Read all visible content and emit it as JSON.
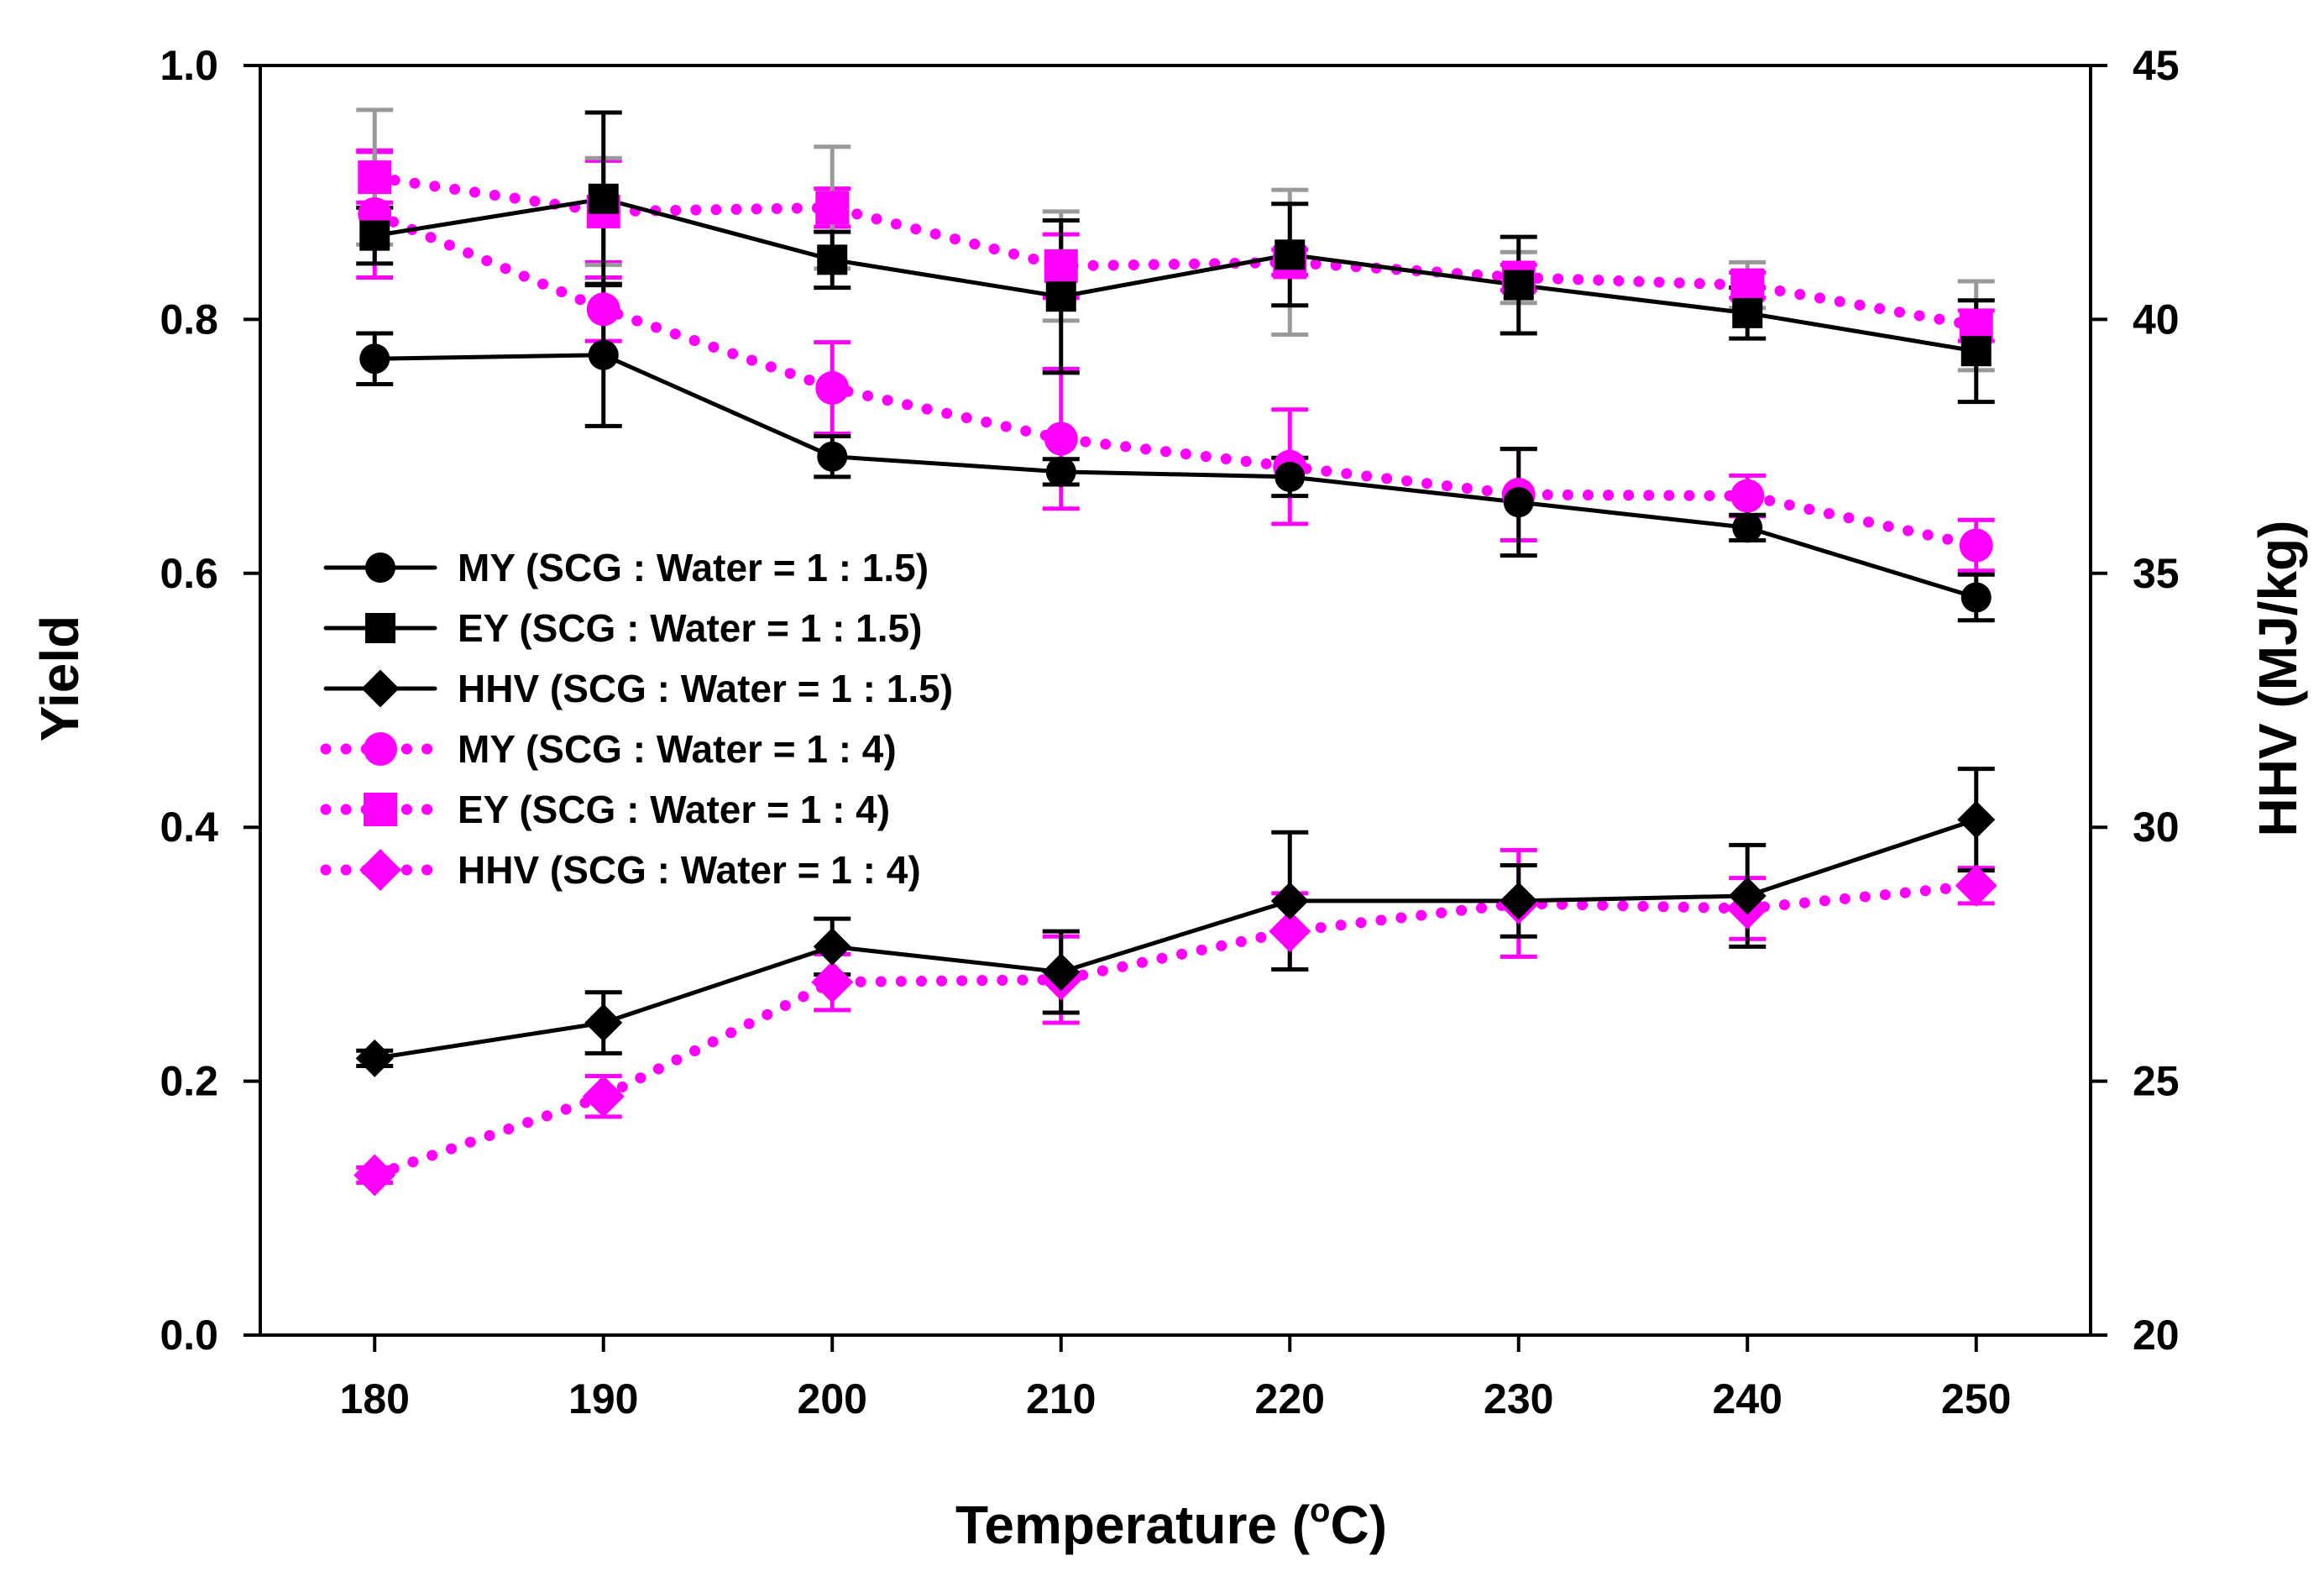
{
  "chart_data": {
    "type": "line",
    "title": "",
    "xlabel": "Temperature (",
    "xlabel_sup": "o",
    "xlabel_end": "C)",
    "ylabel_left": "Yield",
    "ylabel_right": "HHV (MJ/kg)",
    "xlim": [
      175,
      255
    ],
    "ylim_left": [
      0.0,
      1.0
    ],
    "ylim_right": [
      20,
      45
    ],
    "x_ticks": [
      180,
      190,
      200,
      210,
      220,
      230,
      240,
      250
    ],
    "y_left_ticks": [
      "0.0",
      "0.2",
      "0.4",
      "0.6",
      "0.8",
      "1.0"
    ],
    "y_right_ticks": [
      "20",
      "25",
      "30",
      "35",
      "40",
      "45"
    ],
    "x": [
      180,
      190,
      200,
      210,
      220,
      230,
      240,
      250
    ],
    "legend_position": "center-left",
    "series": [
      {
        "name": "MY (SCG : Water = 1 : 1.5)",
        "axis": "left",
        "marker": "circle",
        "style": "solid",
        "color": "#000000",
        "values": [
          0.769,
          0.772,
          0.692,
          0.68,
          0.676,
          0.656,
          0.636,
          0.581
        ],
        "errors": [
          0.02,
          0.056,
          0.016,
          0.01,
          0.015,
          0.042,
          0.01,
          0.018
        ]
      },
      {
        "name": "EY (SCG : Water = 1 : 1.5)",
        "axis": "left",
        "marker": "square",
        "style": "solid",
        "color": "#000000",
        "values": [
          0.866,
          0.895,
          0.847,
          0.818,
          0.851,
          0.827,
          0.805,
          0.775
        ],
        "errors": [
          0.022,
          0.068,
          0.022,
          0.06,
          0.04,
          0.038,
          0.02,
          0.04
        ]
      },
      {
        "name": "HHV (SCG : Water = 1 : 1.5)",
        "axis": "right",
        "marker": "diamond",
        "style": "solid",
        "color": "#000000",
        "values": [
          25.45,
          26.15,
          27.65,
          27.15,
          28.55,
          28.55,
          28.65,
          30.15
        ],
        "errors": [
          0.15,
          0.6,
          0.55,
          0.8,
          1.35,
          0.7,
          1.0,
          1.0
        ]
      },
      {
        "name": "MY (SCG : Water = 1 : 4)",
        "axis": "left",
        "marker": "circle",
        "style": "dotted",
        "color": "#FF00FF",
        "values": [
          0.883,
          0.808,
          0.746,
          0.706,
          0.684,
          0.662,
          0.661,
          0.622
        ],
        "errors": [
          0.05,
          0.025,
          0.036,
          0.055,
          0.045,
          0.036,
          0.016,
          0.02
        ]
      },
      {
        "name": "EY (SCG : Water = 1 : 4)",
        "axis": "left",
        "marker": "square",
        "style": "dotted",
        "color": "#FF00FF",
        "values": [
          0.912,
          0.885,
          0.888,
          0.842,
          0.845,
          0.833,
          0.827,
          0.795
        ],
        "errors": [
          0.02,
          0.04,
          0.015,
          0.025,
          0.01,
          0.01,
          0.01,
          0.012
        ],
        "cap_errors": [
          0.053,
          0.042,
          0.048,
          0.043,
          0.057,
          0.02,
          0.018,
          0.035
        ]
      },
      {
        "name": "HHV (SCG : Water = 1 : 4)",
        "axis": "right",
        "marker": "diamond",
        "style": "dotted",
        "color": "#FF00FF",
        "values": [
          23.15,
          24.7,
          26.95,
          27.0,
          27.95,
          28.5,
          28.4,
          28.85
        ],
        "errors": [
          0.15,
          0.4,
          0.55,
          0.85,
          0.75,
          1.05,
          0.6,
          0.35
        ]
      }
    ]
  }
}
